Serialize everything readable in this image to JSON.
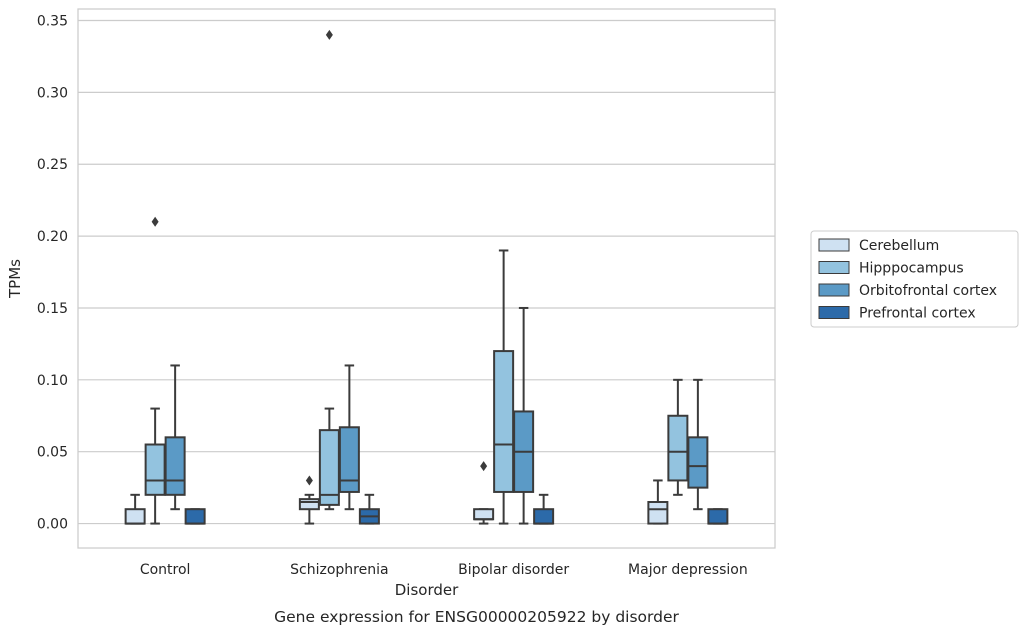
{
  "chart_data": {
    "type": "box",
    "xlabel": "Disorder",
    "ylabel": "TPMs",
    "caption": "Gene expression for ENSG00000205922 by disorder",
    "ylim": [
      -0.017,
      0.358
    ],
    "yticks": [
      0.0,
      0.05,
      0.1,
      0.15,
      0.2,
      0.25,
      0.3,
      0.35
    ],
    "ytick_labels": [
      "0.00",
      "0.05",
      "0.10",
      "0.15",
      "0.20",
      "0.25",
      "0.30",
      "0.35"
    ],
    "grid": "horizontal",
    "legend_position": "right",
    "categories": [
      "Control",
      "Schizophrenia",
      "Bipolar disorder",
      "Major depression"
    ],
    "series": [
      {
        "name": "Cerebellum",
        "color": "#cfe1f2",
        "boxes": [
          {
            "q1": 0.0,
            "median": 0.0,
            "q3": 0.01,
            "whisker_low": 0.0,
            "whisker_high": 0.02,
            "outliers": []
          },
          {
            "q1": 0.01,
            "median": 0.015,
            "q3": 0.017,
            "whisker_low": 0.0,
            "whisker_high": 0.02,
            "outliers": [
              0.03
            ]
          },
          {
            "q1": 0.003,
            "median": 0.003,
            "q3": 0.01,
            "whisker_low": 0.0,
            "whisker_high": 0.01,
            "outliers": [
              0.04
            ]
          },
          {
            "q1": 0.0,
            "median": 0.01,
            "q3": 0.015,
            "whisker_low": 0.0,
            "whisker_high": 0.03,
            "outliers": []
          }
        ]
      },
      {
        "name": "Hipppocampus",
        "color": "#93c3df",
        "boxes": [
          {
            "q1": 0.02,
            "median": 0.03,
            "q3": 0.055,
            "whisker_low": 0.0,
            "whisker_high": 0.08,
            "outliers": [
              0.21
            ]
          },
          {
            "q1": 0.013,
            "median": 0.02,
            "q3": 0.065,
            "whisker_low": 0.01,
            "whisker_high": 0.08,
            "outliers": [
              0.34
            ]
          },
          {
            "q1": 0.022,
            "median": 0.055,
            "q3": 0.12,
            "whisker_low": 0.0,
            "whisker_high": 0.19,
            "outliers": []
          },
          {
            "q1": 0.03,
            "median": 0.05,
            "q3": 0.075,
            "whisker_low": 0.02,
            "whisker_high": 0.1,
            "outliers": []
          }
        ]
      },
      {
        "name": "Orbitofrontal cortex",
        "color": "#5b9ac6",
        "boxes": [
          {
            "q1": 0.02,
            "median": 0.03,
            "q3": 0.06,
            "whisker_low": 0.01,
            "whisker_high": 0.11,
            "outliers": []
          },
          {
            "q1": 0.022,
            "median": 0.03,
            "q3": 0.067,
            "whisker_low": 0.01,
            "whisker_high": 0.11,
            "outliers": []
          },
          {
            "q1": 0.022,
            "median": 0.05,
            "q3": 0.078,
            "whisker_low": 0.0,
            "whisker_high": 0.15,
            "outliers": []
          },
          {
            "q1": 0.025,
            "median": 0.04,
            "q3": 0.06,
            "whisker_low": 0.01,
            "whisker_high": 0.1,
            "outliers": []
          }
        ]
      },
      {
        "name": "Prefrontal cortex",
        "color": "#2c6aa9",
        "boxes": [
          {
            "q1": 0.0,
            "median": 0.0,
            "q3": 0.01,
            "whisker_low": 0.0,
            "whisker_high": 0.01,
            "outliers": []
          },
          {
            "q1": 0.0,
            "median": 0.005,
            "q3": 0.01,
            "whisker_low": 0.0,
            "whisker_high": 0.02,
            "outliers": []
          },
          {
            "q1": 0.0,
            "median": 0.0,
            "q3": 0.01,
            "whisker_low": 0.0,
            "whisker_high": 0.02,
            "outliers": []
          },
          {
            "q1": 0.0,
            "median": 0.0,
            "q3": 0.01,
            "whisker_low": 0.0,
            "whisker_high": 0.01,
            "outliers": []
          }
        ]
      }
    ]
  }
}
